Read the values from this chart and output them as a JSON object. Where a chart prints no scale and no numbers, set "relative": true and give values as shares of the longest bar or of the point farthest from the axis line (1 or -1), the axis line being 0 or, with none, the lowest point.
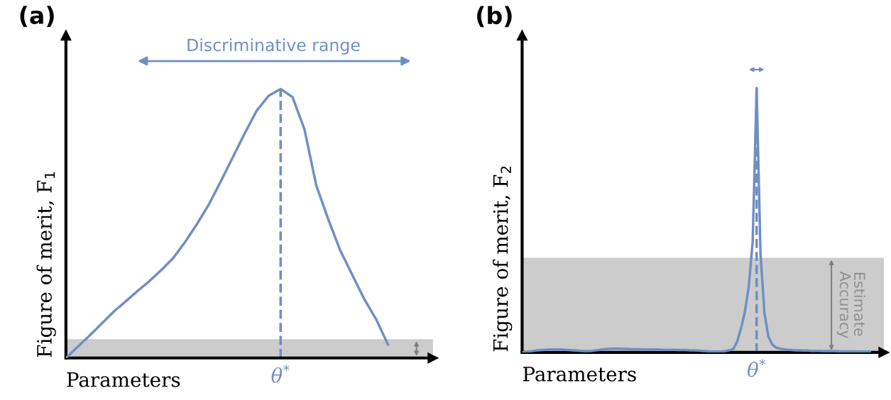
{
  "chart_data": [
    {
      "type": "line",
      "title": "(a)",
      "xlabel": "Parameters",
      "ylabel": "Figure of merit, F$_{1}$",
      "relative": true,
      "categories": [
        null,
        null,
        null,
        null,
        null,
        null,
        null,
        null,
        null,
        null,
        null,
        null,
        null,
        null,
        null,
        null,
        null,
        null,
        null,
        null,
        null,
        null,
        null,
        null,
        null,
        null,
        null,
        null
      ],
      "series": [
        {
          "color": "#6f8fc4",
          "values": [
            0,
            0.042,
            0.084,
            0.128,
            0.172,
            0.21,
            0.249,
            0.286,
            0.327,
            0.372,
            0.432,
            0.499,
            0.572,
            0.658,
            0.747,
            0.836,
            0.92,
            0.975,
            1,
            0.97,
            0.85,
            0.64,
            0.515,
            0.4,
            0.31,
            0.22,
            0.145,
            0.05
          ]
        }
      ],
      "bands": [
        {
          "axis": "y",
          "from": 0,
          "to": 0.07,
          "color": "#cccccc"
        }
      ],
      "annotations": [
        "Discriminative range",
        "θ$^{*}$"
      ]
    },
    {
      "type": "line",
      "title": "(b)",
      "xlabel": "Parameters",
      "ylabel": "Figure of merit, F$_{2}$",
      "relative": true,
      "categories": [
        null,
        null,
        null,
        null,
        null,
        null,
        null,
        null,
        null,
        null,
        null,
        null,
        null,
        null,
        null,
        null,
        null,
        null,
        null,
        null,
        null,
        null,
        null,
        null,
        null,
        null,
        null,
        null,
        null,
        null,
        null,
        null,
        null,
        null,
        null,
        null,
        null,
        null,
        null,
        null,
        null,
        null,
        null,
        null,
        null,
        null,
        null,
        null,
        null,
        null,
        null,
        null,
        null,
        null,
        null,
        null,
        null,
        null,
        null,
        null,
        null,
        null,
        null,
        null,
        null,
        null,
        null,
        null,
        null,
        null,
        null,
        null,
        null,
        null,
        null,
        null,
        null,
        null,
        null,
        null,
        null,
        null,
        null,
        null,
        null,
        null,
        null,
        null,
        null,
        null
      ],
      "series": [
        {
          "color": "#6f8fc4",
          "values": [
            0,
            0.002,
            0.004,
            0.006,
            0.008,
            0.009,
            0.01,
            0.011,
            0.011,
            0.011,
            0.011,
            0.01,
            0.009,
            0.008,
            0.007,
            0.006,
            0.005,
            0.005,
            0.006,
            0.008,
            0.01,
            0.012,
            0.013,
            0.014,
            0.014,
            0.014,
            0.013,
            0.013,
            0.012,
            0.012,
            0.012,
            0.011,
            0.011,
            0.011,
            0.011,
            0.011,
            0.01,
            0.01,
            0.01,
            0.01,
            0.009,
            0.009,
            0.009,
            0.008,
            0.008,
            0.007,
            0.006,
            0.005,
            0.004,
            0.003,
            0.003,
            0.003,
            0.005,
            0.008,
            0.012,
            0.04,
            0.09,
            0.154,
            0.25,
            0.42,
            1,
            0.371,
            0.15,
            0.06,
            0.03,
            0.018,
            0.014,
            0.012,
            0.01,
            0.009,
            0.008,
            0.008,
            0.007,
            0.007,
            0.006,
            0.006,
            0.006,
            0.005,
            0.005,
            0.005,
            0.005,
            0.004,
            0.004,
            0.004,
            0.004,
            0.004,
            0.003,
            0.003,
            0.003,
            0.003
          ]
        }
      ],
      "bands": [
        {
          "axis": "y",
          "from": 0,
          "to": 0.358,
          "color": "#cccccc",
          "label": "Estimate\nAccuracy"
        }
      ],
      "annotations": [
        "θ$^{*}$"
      ]
    }
  ]
}
